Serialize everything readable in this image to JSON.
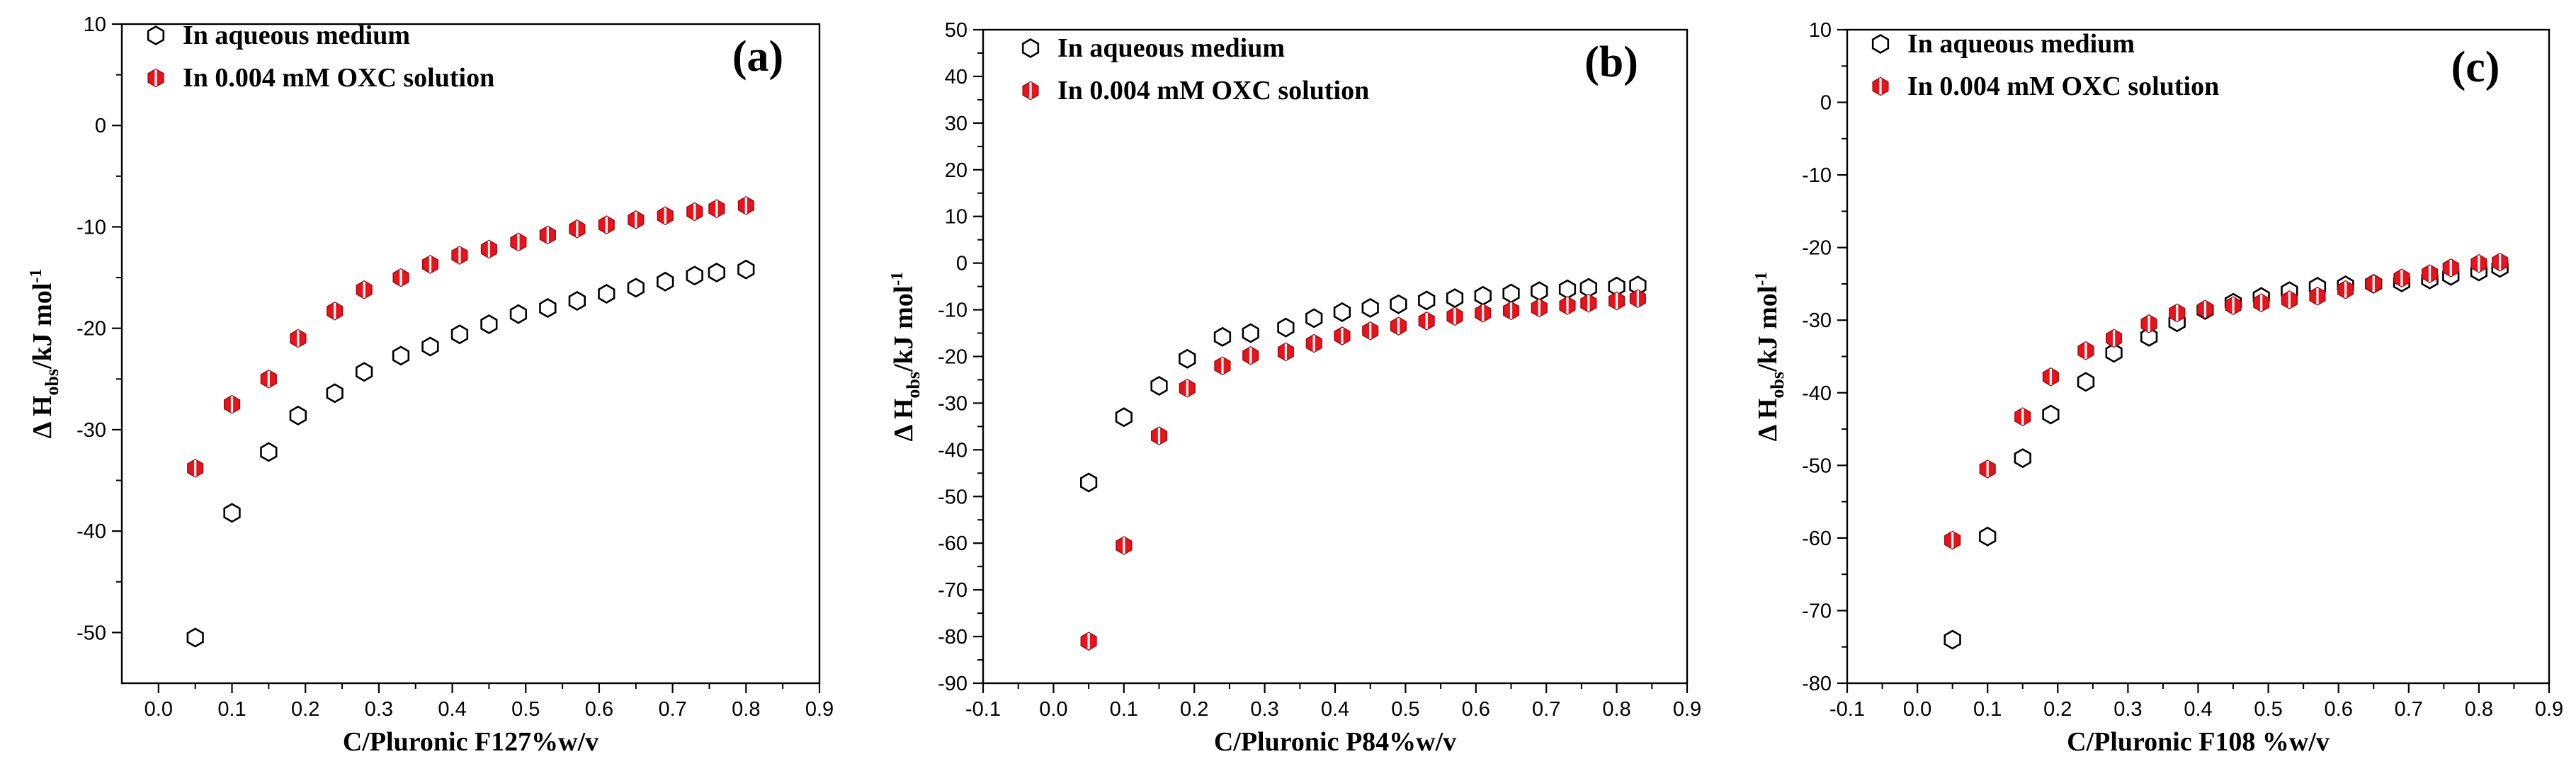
{
  "colors": {
    "open_marker_stroke": "#000000",
    "filled_marker": "#e8141b",
    "filled_marker_dark": "#a10a10",
    "axis": "#000000"
  },
  "chart_data": [
    {
      "type": "scatter",
      "panel_label": "(a)",
      "xlabel": "C/Pluronic F127%w/v",
      "ylabel_main": "Δ H",
      "ylabel_sub": "obs",
      "ylabel_unit": "/kJ mol",
      "ylabel_sup": "-1",
      "xlim": [
        -0.05,
        0.9
      ],
      "ylim": [
        -55,
        10
      ],
      "xticks": [
        0.0,
        0.1,
        0.2,
        0.3,
        0.4,
        0.5,
        0.6,
        0.7,
        0.8,
        0.9
      ],
      "xtick_labels": [
        "0.0",
        "0.1",
        "0.2",
        "0.3",
        "0.4",
        "0.5",
        "0.6",
        "0.7",
        "0.8",
        "0.9"
      ],
      "yticks": [
        -50,
        -40,
        -30,
        -20,
        -10,
        0,
        10
      ],
      "ytick_labels": [
        "-50",
        "-40",
        "-30",
        "-20",
        "-10",
        "0",
        "10"
      ],
      "series": [
        {
          "name": "In aqueous medium",
          "marker": "open",
          "x": [
            0.05,
            0.1,
            0.15,
            0.19,
            0.24,
            0.28,
            0.33,
            0.37,
            0.41,
            0.45,
            0.49,
            0.53,
            0.57,
            0.61,
            0.65,
            0.69,
            0.73,
            0.76,
            0.8
          ],
          "y": [
            -50.5,
            -38.2,
            -32.2,
            -28.6,
            -26.4,
            -24.3,
            -22.7,
            -21.8,
            -20.6,
            -19.6,
            -18.6,
            -18.0,
            -17.3,
            -16.6,
            -16.0,
            -15.4,
            -14.8,
            -14.5,
            -14.2
          ]
        },
        {
          "name": "In 0.004 mM OXC solution",
          "marker": "filled",
          "x": [
            0.05,
            0.1,
            0.15,
            0.19,
            0.24,
            0.28,
            0.33,
            0.37,
            0.41,
            0.45,
            0.49,
            0.53,
            0.57,
            0.61,
            0.65,
            0.69,
            0.73,
            0.76,
            0.8
          ],
          "y": [
            -33.8,
            -27.5,
            -25.0,
            -21.0,
            -18.3,
            -16.2,
            -15.0,
            -13.7,
            -12.8,
            -12.2,
            -11.5,
            -10.8,
            -10.2,
            -9.8,
            -9.3,
            -8.9,
            -8.5,
            -8.2,
            -7.9
          ]
        }
      ]
    },
    {
      "type": "scatter",
      "panel_label": "(b)",
      "xlabel": "C/Pluronic P84%w/v",
      "ylabel_main": "Δ H",
      "ylabel_sub": "obs",
      "ylabel_unit": "/kJ mol",
      "ylabel_sup": "-1",
      "xlim": [
        -0.1,
        0.9
      ],
      "ylim": [
        -90,
        50
      ],
      "xticks": [
        -0.1,
        0.0,
        0.1,
        0.2,
        0.3,
        0.4,
        0.5,
        0.6,
        0.7,
        0.8,
        0.9
      ],
      "xtick_labels": [
        "-0.1",
        "0.0",
        "0.1",
        "0.2",
        "0.3",
        "0.4",
        "0.5",
        "0.6",
        "0.7",
        "0.8",
        "0.9"
      ],
      "yticks": [
        -90,
        -80,
        -70,
        -60,
        -50,
        -40,
        -30,
        -20,
        -10,
        0,
        10,
        20,
        30,
        40,
        50
      ],
      "ytick_labels": [
        "-90",
        "-80",
        "-70",
        "-60",
        "-50",
        "-40",
        "-30",
        "-20",
        "-10",
        "0",
        "10",
        "20",
        "30",
        "40",
        "50"
      ],
      "series": [
        {
          "name": "In aqueous medium",
          "marker": "open",
          "x": [
            0.05,
            0.1,
            0.15,
            0.19,
            0.24,
            0.28,
            0.33,
            0.37,
            0.41,
            0.45,
            0.49,
            0.53,
            0.57,
            0.61,
            0.65,
            0.69,
            0.73,
            0.76,
            0.8,
            0.83
          ],
          "y": [
            -47.0,
            -33.0,
            -26.3,
            -20.5,
            -15.8,
            -15.0,
            -13.8,
            -11.8,
            -10.5,
            -9.6,
            -8.8,
            -8.0,
            -7.5,
            -7.0,
            -6.5,
            -6.0,
            -5.6,
            -5.3,
            -5.0,
            -4.8
          ]
        },
        {
          "name": "In 0.004 mM OXC solution",
          "marker": "filled",
          "x": [
            0.05,
            0.1,
            0.15,
            0.19,
            0.24,
            0.28,
            0.33,
            0.37,
            0.41,
            0.45,
            0.49,
            0.53,
            0.57,
            0.61,
            0.65,
            0.69,
            0.73,
            0.76,
            0.8,
            0.83
          ],
          "y": [
            -81.0,
            -60.5,
            -37.0,
            -26.8,
            -22.0,
            -19.8,
            -19.0,
            -17.2,
            -15.6,
            -14.5,
            -13.5,
            -12.4,
            -11.4,
            -10.7,
            -10.2,
            -9.6,
            -9.1,
            -8.6,
            -8.1,
            -7.6
          ]
        }
      ]
    },
    {
      "type": "scatter",
      "panel_label": "(c)",
      "xlabel": "C/Pluronic F108 %w/v",
      "ylabel_main": "Δ H",
      "ylabel_sub": "obs",
      "ylabel_unit": "/kJ mol",
      "ylabel_sup": "-1",
      "xlim": [
        -0.1,
        0.9
      ],
      "ylim": [
        -80,
        10
      ],
      "xticks": [
        -0.1,
        0.0,
        0.1,
        0.2,
        0.3,
        0.4,
        0.5,
        0.6,
        0.7,
        0.8,
        0.9
      ],
      "xtick_labels": [
        "-0.1",
        "0.0",
        "0.1",
        "0.2",
        "0.3",
        "0.4",
        "0.5",
        "0.6",
        "0.7",
        "0.8",
        "0.9"
      ],
      "yticks": [
        -80,
        -70,
        -60,
        -50,
        -40,
        -30,
        -20,
        -10,
        0,
        10
      ],
      "ytick_labels": [
        "-80",
        "-70",
        "-60",
        "-50",
        "-40",
        "-30",
        "-20",
        "-10",
        "0",
        "10"
      ],
      "series": [
        {
          "name": "In aqueous medium",
          "marker": "open",
          "x": [
            0.05,
            0.1,
            0.15,
            0.19,
            0.24,
            0.28,
            0.33,
            0.37,
            0.41,
            0.45,
            0.49,
            0.53,
            0.57,
            0.61,
            0.65,
            0.69,
            0.73,
            0.76,
            0.8,
            0.83
          ],
          "y": [
            -74.0,
            -59.8,
            -49.0,
            -43.0,
            -38.5,
            -34.5,
            -32.3,
            -30.3,
            -28.6,
            -27.6,
            -26.8,
            -26.0,
            -25.4,
            -25.2,
            -25.0,
            -24.8,
            -24.4,
            -23.9,
            -23.3,
            -22.8
          ]
        },
        {
          "name": "In 0.004 mM OXC solution",
          "marker": "filled",
          "x": [
            0.05,
            0.1,
            0.15,
            0.19,
            0.24,
            0.28,
            0.33,
            0.37,
            0.41,
            0.45,
            0.49,
            0.53,
            0.57,
            0.61,
            0.65,
            0.69,
            0.73,
            0.76,
            0.8,
            0.83
          ],
          "y": [
            -60.3,
            -50.5,
            -43.3,
            -37.8,
            -34.2,
            -32.5,
            -30.5,
            -29.0,
            -28.5,
            -28.0,
            -27.6,
            -27.2,
            -26.7,
            -25.8,
            -25.0,
            -24.2,
            -23.6,
            -22.8,
            -22.2,
            -22.0
          ]
        }
      ]
    }
  ]
}
